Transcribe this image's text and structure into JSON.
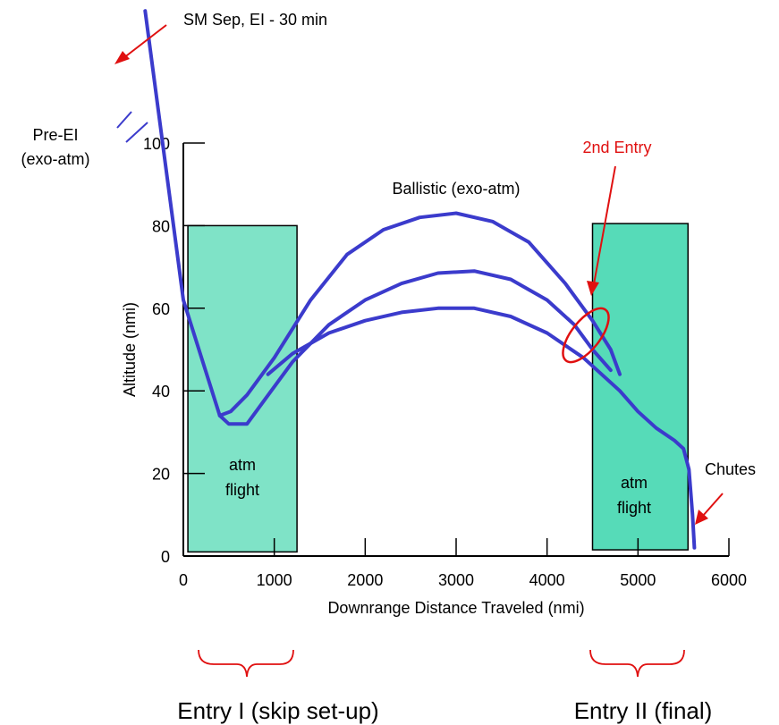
{
  "chart_data": {
    "type": "line",
    "xlabel": "Downrange Distance Traveled (nmi)",
    "ylabel": "Altitude (nmi)",
    "xlim": [
      0,
      6000
    ],
    "ylim": [
      0,
      100
    ],
    "x_ticks": [
      0,
      1000,
      2000,
      3000,
      4000,
      5000,
      6000
    ],
    "x_tick_labels": [
      "0",
      "1000",
      "2000",
      "3000",
      "4000",
      "5000",
      "6000"
    ],
    "y_ticks": [
      0,
      20,
      40,
      60,
      80,
      100
    ],
    "y_tick_labels": [
      "0",
      "20",
      "40",
      "60",
      "80",
      "100"
    ],
    "grid": false,
    "line_color": "#3b3bcc",
    "series": [
      {
        "x": [
          -420,
          0,
          200,
          400,
          520,
          700,
          1000,
          1400,
          1800,
          2200,
          2600,
          3000,
          3400,
          3800,
          4200,
          4500,
          4700,
          4800
        ],
        "y": [
          132,
          62,
          48,
          34,
          35,
          39,
          48,
          62,
          73,
          79,
          82,
          83,
          81,
          76,
          66,
          57,
          50,
          44
        ]
      },
      {
        "x": [
          400,
          500,
          700,
          900,
          1200,
          1600,
          2000,
          2400,
          2800,
          3200,
          3600,
          4000,
          4300,
          4500,
          4700
        ],
        "y": [
          34,
          32,
          32,
          38,
          47,
          56,
          62,
          66,
          68.5,
          69,
          67,
          62,
          56,
          50,
          45
        ]
      },
      {
        "x": [
          930,
          1200,
          1600,
          2000,
          2400,
          2800,
          3200,
          3600,
          4000,
          4400,
          4800,
          5000,
          5200,
          5400,
          5500,
          5560,
          5600,
          5620
        ],
        "y": [
          44,
          49,
          54,
          57,
          59,
          60,
          60,
          58,
          54,
          48,
          40,
          35,
          31,
          28,
          26,
          21,
          10,
          2
        ]
      }
    ],
    "shaded_regions": [
      {
        "x0": 50,
        "x1": 1250,
        "y0": 1,
        "y1": 80,
        "color": "#7fe3c7"
      },
      {
        "x0": 4500,
        "x1": 5550,
        "y0": 1.5,
        "y1": 80.5,
        "color": "#56dbb8"
      }
    ],
    "annotation_color": "#e01010",
    "annotations": {
      "sm_sep": "SM Sep, EI - 30 min",
      "pre_ei_1": "Pre-EI",
      "pre_ei_2": "(exo-atm)",
      "ballistic": "Ballistic (exo-atm)",
      "second_entry": "2nd Entry",
      "atm_flight_1": "atm",
      "atm_flight_2": "flight",
      "chutes": "Chutes",
      "entry_1": "Entry I (skip set-up)",
      "entry_2": "Entry II (final)"
    }
  }
}
